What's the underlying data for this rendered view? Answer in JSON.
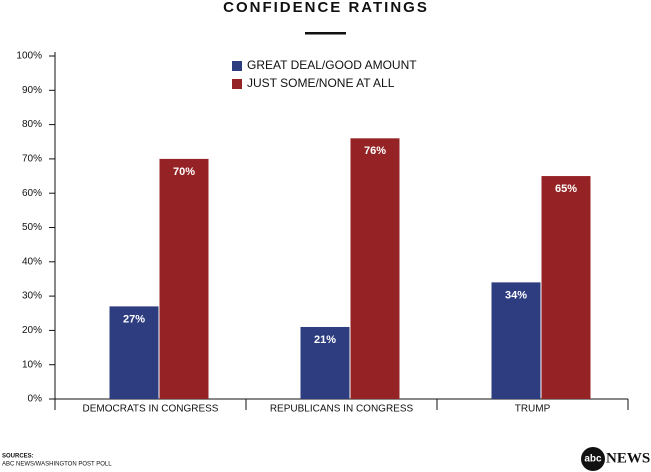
{
  "chart_data": {
    "type": "bar",
    "title": "CONFIDENCE RATINGS",
    "categories": [
      "DEMOCRATS IN CONGRESS",
      "REPUBLICANS IN CONGRESS",
      "TRUMP"
    ],
    "series": [
      {
        "name": "GREAT DEAL/GOOD AMOUNT",
        "color": "#2e3c80",
        "values": [
          27,
          21,
          34
        ],
        "value_labels": [
          "27%",
          "21%",
          "34%"
        ]
      },
      {
        "name": "JUST SOME/NONE AT ALL",
        "color": "#952325",
        "values": [
          70,
          76,
          65
        ],
        "value_labels": [
          "70%",
          "76%",
          "65%"
        ]
      }
    ],
    "ylim": [
      0,
      100
    ],
    "yticks": [
      {
        "value": 0,
        "label": "0%"
      },
      {
        "value": 10,
        "label": "10%"
      },
      {
        "value": 20,
        "label": "20%"
      },
      {
        "value": 30,
        "label": "30%"
      },
      {
        "value": 40,
        "label": "40%"
      },
      {
        "value": 50,
        "label": "50%"
      },
      {
        "value": 60,
        "label": "60%"
      },
      {
        "value": 70,
        "label": "70%"
      },
      {
        "value": 80,
        "label": "80%"
      },
      {
        "value": 90,
        "label": "90%"
      },
      {
        "value": 100,
        "label": "100%"
      }
    ],
    "grid": false,
    "source_label": "SOURCES:",
    "source": "ABC NEWS/WASHINGTON POST POLL"
  },
  "logo": {
    "mark": "abc",
    "name": "NEWS"
  }
}
